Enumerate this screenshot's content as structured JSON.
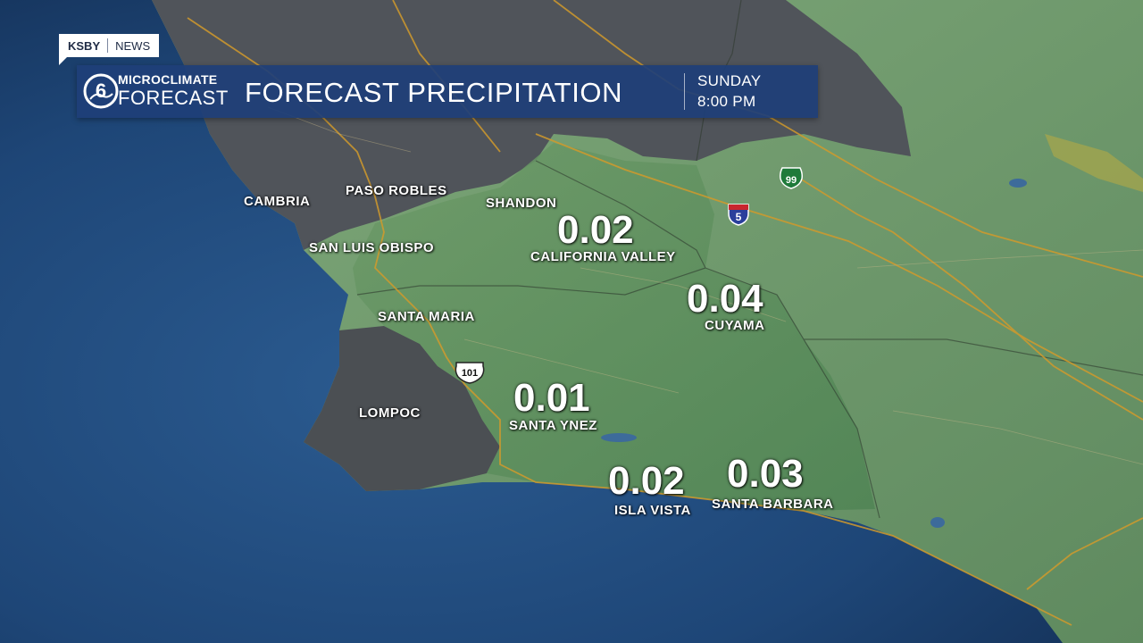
{
  "station": {
    "call": "KSBY",
    "network": "NEWS"
  },
  "banner": {
    "logo_line1": "MICROCLIMATE",
    "logo_line2": "FORECAST",
    "logo_numeral": "6",
    "title": "FORECAST PRECIPITATION",
    "day": "SUNDAY",
    "time": "8:00 PM"
  },
  "cities": [
    {
      "id": "cambria",
      "name": "CAMBRIA"
    },
    {
      "id": "paso-robles",
      "name": "PASO ROBLES"
    },
    {
      "id": "shandon",
      "name": "SHANDON"
    },
    {
      "id": "san-luis-obispo",
      "name": "SAN LUIS OBISPO"
    },
    {
      "id": "santa-maria",
      "name": "SANTA MARIA"
    },
    {
      "id": "lompoc",
      "name": "LOMPOC"
    },
    {
      "id": "california-valley",
      "name": "CALIFORNIA VALLEY",
      "precip": "0.02"
    },
    {
      "id": "cuyama",
      "name": "CUYAMA",
      "precip": "0.04"
    },
    {
      "id": "santa-ynez",
      "name": "SANTA YNEZ",
      "precip": "0.01"
    },
    {
      "id": "isla-vista",
      "name": "ISLA VISTA",
      "precip": "0.02"
    },
    {
      "id": "santa-barbara",
      "name": "SANTA BARBARA",
      "precip": "0.03"
    }
  ],
  "highways": {
    "us101": "101",
    "i5": "5",
    "ca99": "99"
  },
  "colors": {
    "ocean": "#1d3f6b",
    "land_rain": "#6f9a6d",
    "land_dry": "#4a4e52",
    "banner": "#1e3f78",
    "roads": "#d19a2c"
  }
}
